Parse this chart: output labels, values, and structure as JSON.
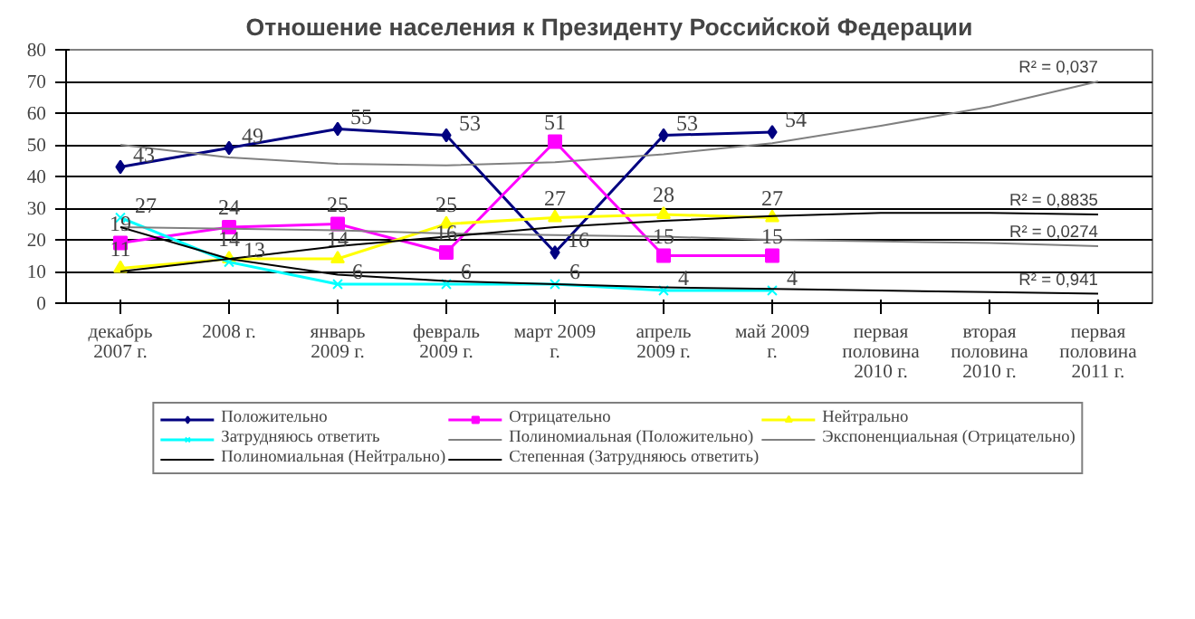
{
  "chart_data": {
    "type": "line",
    "title": "Отношение населения к Президенту Российской Федерации",
    "categories": [
      "декабрь 2007 г.",
      "2008 г.",
      "январь 2009 г.",
      "февраль 2009 г.",
      "март 2009 г.",
      "апрель 2009 г.",
      "май 2009 г.",
      "первая половина 2010 г.",
      "вторая половина 2010 г.",
      "первая половина 2011 г."
    ],
    "series": [
      {
        "name": "Положительно",
        "color": "#000080",
        "marker": "diamond",
        "values": [
          43,
          49,
          55,
          53,
          16,
          53,
          54,
          null,
          null,
          null
        ],
        "value_labels": [
          "43",
          "49",
          "55",
          "53",
          "16",
          "53",
          "54",
          null,
          null,
          null
        ]
      },
      {
        "name": "Отрицательно",
        "color": "#ff00ff",
        "marker": "square",
        "values": [
          19,
          24,
          25,
          16,
          51,
          15,
          15,
          null,
          null,
          null
        ],
        "value_labels": [
          "19",
          "24",
          "25",
          "16",
          "51",
          "15",
          "15",
          null,
          null,
          null
        ]
      },
      {
        "name": "Нейтрально",
        "color": "#ffff00",
        "marker": "triangle",
        "values": [
          11,
          14,
          14,
          25,
          27,
          28,
          27,
          null,
          null,
          null
        ],
        "value_labels": [
          "11",
          "14",
          "14",
          "25",
          "27",
          "28",
          "27",
          null,
          null,
          null
        ]
      },
      {
        "name": "Затрудняюсь ответить",
        "color": "#00ffff",
        "marker": "cross",
        "values": [
          27,
          13,
          6,
          6,
          6,
          4,
          4,
          null,
          null,
          null
        ],
        "value_labels": [
          "27",
          "13",
          "6",
          "6",
          "6",
          "4",
          "4",
          null,
          null,
          null
        ]
      },
      {
        "name": "Полиномиальная (Положительно)",
        "color": "#808080",
        "marker": "none",
        "values": [
          50,
          46,
          44,
          43.5,
          44.5,
          47,
          50.5,
          56,
          62,
          70
        ]
      },
      {
        "name": "Экспоненциальная (Отрицательно)",
        "color": "#808080",
        "marker": "none",
        "values": [
          24,
          23.5,
          23,
          22,
          21.5,
          21,
          20,
          19.5,
          19,
          18
        ]
      },
      {
        "name": "Полиномиальная (Нейтрально)",
        "color": "#000000",
        "marker": "none",
        "values": [
          10,
          14,
          18,
          21,
          24,
          26,
          27.5,
          28.5,
          28.5,
          28
        ]
      },
      {
        "name": "Степенная (Затрудняюсь ответить)",
        "color": "#000000",
        "marker": "none",
        "values": [
          24,
          14,
          9,
          7,
          6,
          5,
          4.5,
          4,
          3.5,
          3
        ]
      }
    ],
    "annotations": [
      "R² = 0,037",
      "R² = 0,8835",
      "R² = 0,0274",
      "R² = 0,941"
    ],
    "ylim": [
      0,
      80
    ],
    "yticks": [
      0,
      10,
      20,
      30,
      40,
      50,
      60,
      70,
      80
    ],
    "grid": "y",
    "legend": "bottom"
  }
}
